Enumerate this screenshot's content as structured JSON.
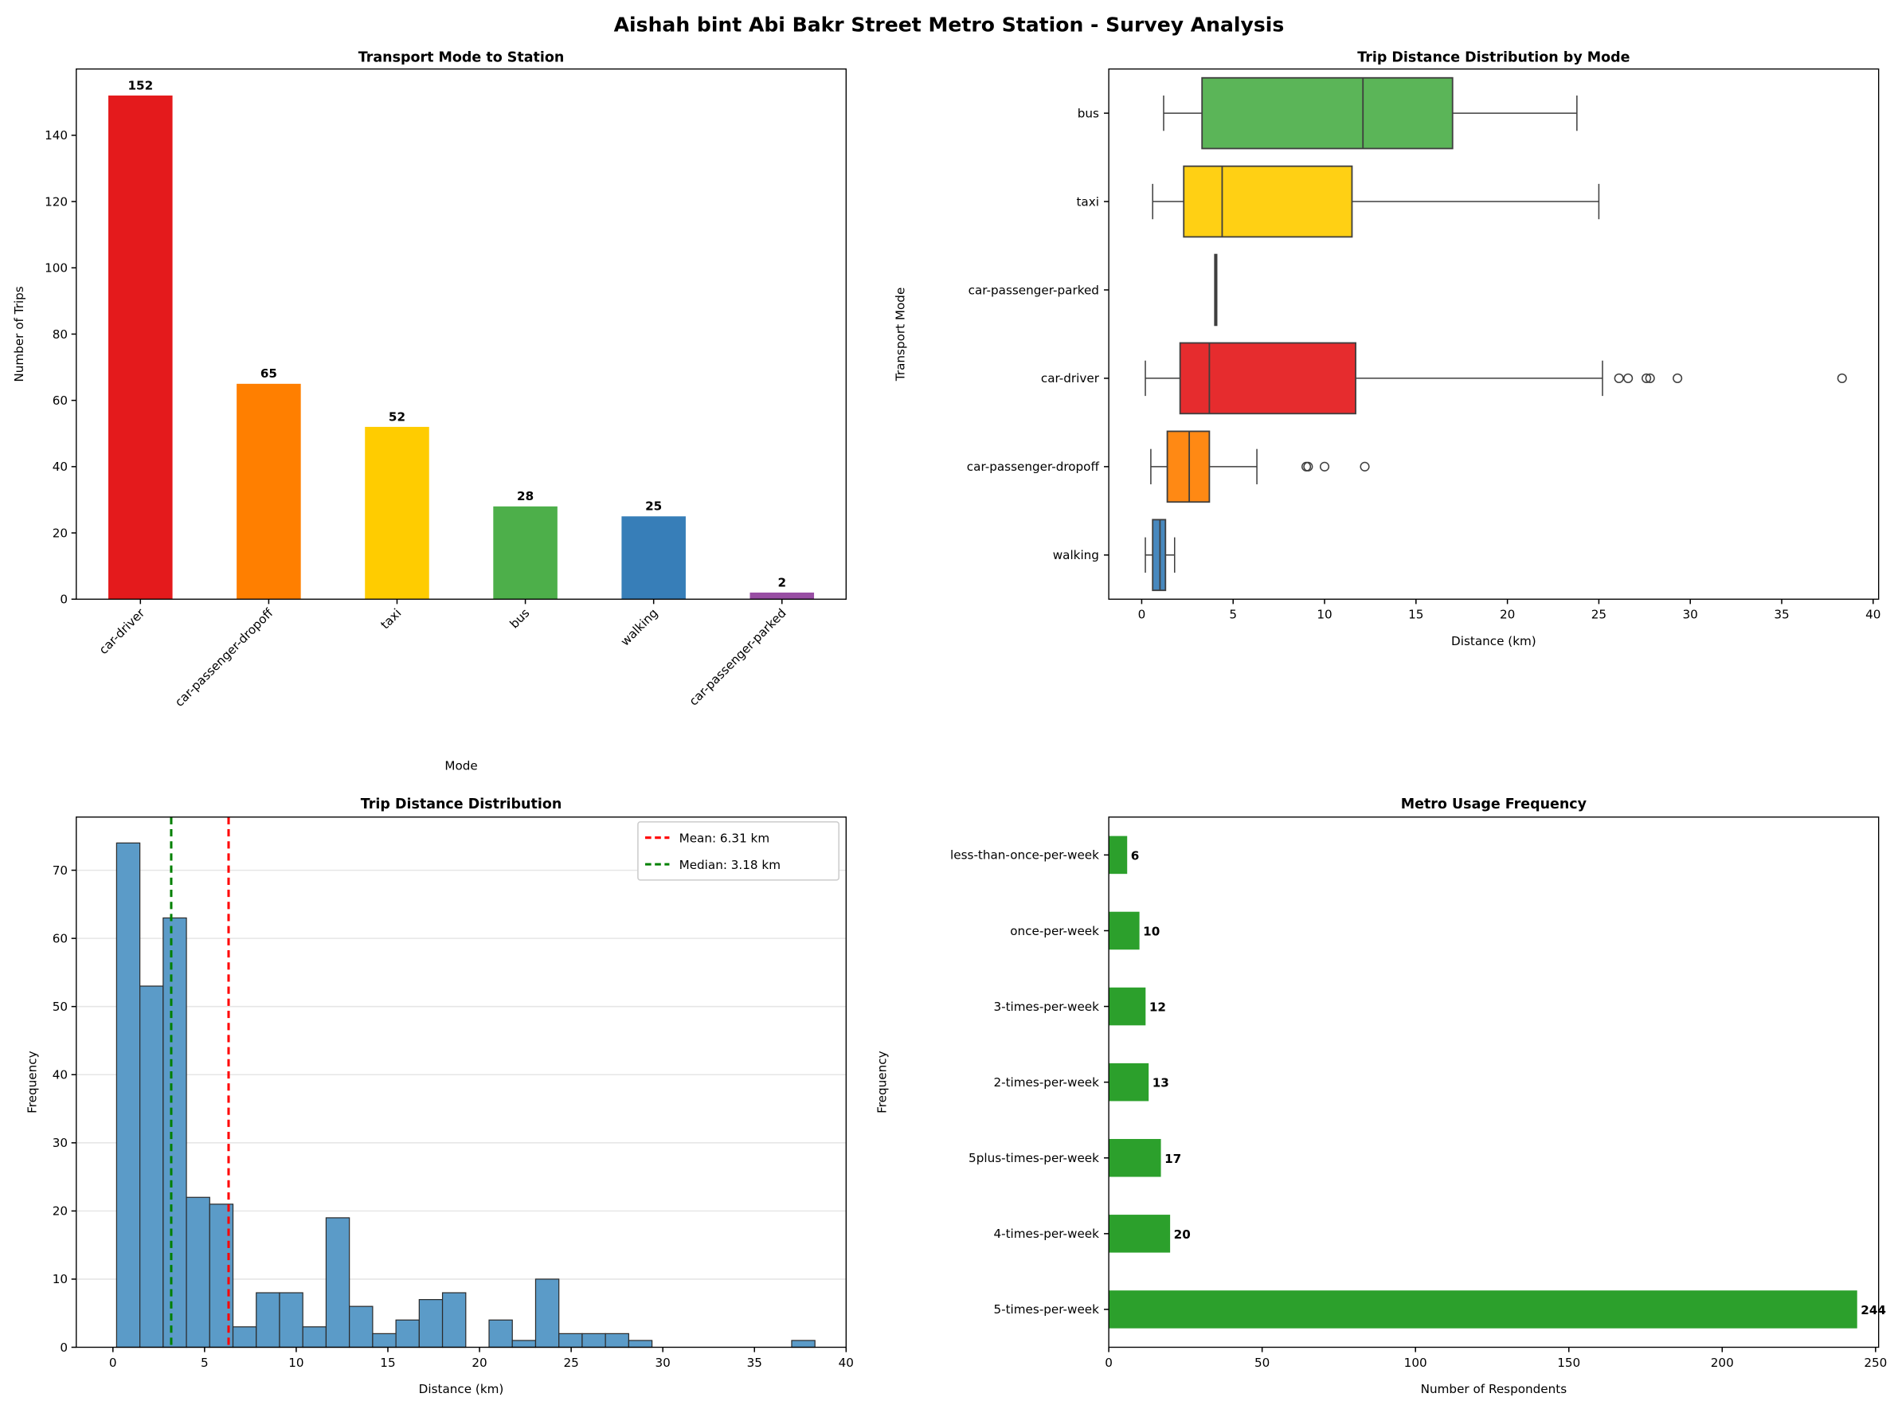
{
  "title": "Aishah bint Abi Bakr Street Metro Station - Survey Analysis",
  "chart_data": [
    {
      "type": "bar",
      "title": "Transport Mode to Station",
      "xlabel": "Mode",
      "ylabel": "Number of Trips",
      "categories": [
        "car-driver",
        "car-passenger-dropoff",
        "taxi",
        "bus",
        "walking",
        "car-passenger-parked"
      ],
      "values": [
        152,
        65,
        52,
        28,
        25,
        2
      ],
      "colors": [
        "#e41a1c",
        "#ff7f00",
        "#ffcc00",
        "#4daf4a",
        "#377eb8",
        "#984ea3"
      ],
      "ylim": [
        0,
        160
      ],
      "yticks": [
        0,
        20,
        40,
        60,
        80,
        100,
        120,
        140
      ],
      "grid": false
    },
    {
      "type": "box",
      "title": "Trip Distance Distribution by Mode",
      "xlabel": "Distance (km)",
      "ylabel": "Transport Mode",
      "xlim": [
        -1.8,
        40.3
      ],
      "xticks": [
        0,
        5,
        10,
        15,
        20,
        25,
        30,
        35,
        40
      ],
      "series": [
        {
          "category": "bus",
          "color": "#4daf4a",
          "whisker_low": 1.2,
          "q1": 3.3,
          "median": 12.1,
          "q3": 17.0,
          "whisker_high": 23.8,
          "outliers": []
        },
        {
          "category": "taxi",
          "color": "#ffcc00",
          "whisker_low": 0.6,
          "q1": 2.3,
          "median": 4.4,
          "q3": 11.5,
          "whisker_high": 25.0,
          "outliers": []
        },
        {
          "category": "car-passenger-parked",
          "color": "#984ea3",
          "whisker_low": 4.0,
          "q1": 4.0,
          "median": 4.05,
          "q3": 4.1,
          "whisker_high": 4.1,
          "outliers": []
        },
        {
          "category": "car-driver",
          "color": "#e41a1c",
          "whisker_low": 0.2,
          "q1": 2.1,
          "median": 3.7,
          "q3": 11.7,
          "whisker_high": 25.2,
          "outliers": [
            26.1,
            26.6,
            27.6,
            27.8,
            29.3,
            38.3
          ]
        },
        {
          "category": "car-passenger-dropoff",
          "color": "#ff7f00",
          "whisker_low": 0.5,
          "q1": 1.4,
          "median": 2.6,
          "q3": 3.7,
          "whisker_high": 6.3,
          "outliers": [
            9.0,
            9.1,
            10.0,
            12.2
          ]
        },
        {
          "category": "walking",
          "color": "#377eb8",
          "whisker_low": 0.2,
          "q1": 0.6,
          "median": 1.0,
          "q3": 1.3,
          "whisker_high": 1.8,
          "outliers": []
        }
      ]
    },
    {
      "type": "histogram",
      "title": "Trip Distance Distribution",
      "xlabel": "Distance (km)",
      "ylabel": "Frequency",
      "bin_start": 0.2,
      "bin_end": 38.3,
      "counts": [
        74,
        53,
        63,
        22,
        21,
        3,
        8,
        8,
        3,
        19,
        6,
        2,
        4,
        7,
        8,
        0,
        4,
        1,
        10,
        2,
        2,
        2,
        1,
        0,
        0,
        0,
        0,
        0,
        0,
        1
      ],
      "color": "#5b9bc8",
      "xlim": [
        -2,
        40
      ],
      "ylim": [
        0,
        77.8
      ],
      "xticks": [
        0,
        5,
        10,
        15,
        20,
        25,
        30,
        35,
        40
      ],
      "yticks": [
        0,
        10,
        20,
        30,
        40,
        50,
        60,
        70
      ],
      "grid": "y",
      "lines": [
        {
          "label": "Mean: 6.31 km",
          "value": 6.31,
          "color": "#ff0000"
        },
        {
          "label": "Median: 3.18 km",
          "value": 3.18,
          "color": "#008000"
        }
      ],
      "legend": "top-right"
    },
    {
      "type": "barh",
      "title": "Metro Usage Frequency",
      "xlabel": "Number of Respondents",
      "ylabel": "Frequency",
      "categories": [
        "less-than-once-per-week",
        "once-per-week",
        "3-times-per-week",
        "2-times-per-week",
        "5plus-times-per-week",
        "4-times-per-week",
        "5-times-per-week"
      ],
      "values": [
        6,
        10,
        12,
        13,
        17,
        20,
        244
      ],
      "color": "#2ca02c",
      "xlim": [
        0,
        251
      ],
      "xticks": [
        0,
        50,
        100,
        150,
        200,
        250
      ],
      "grid": false
    }
  ]
}
